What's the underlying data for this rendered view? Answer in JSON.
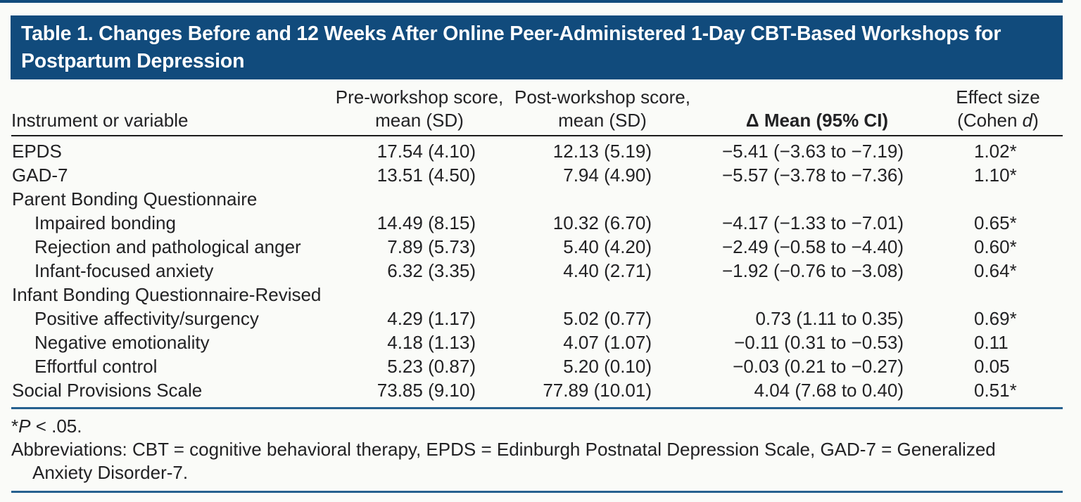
{
  "page": {
    "background": "#fafbf8",
    "accent_blue": "#114b7c",
    "rule_blue": "#26618f",
    "header_rule": "#1c1c1c"
  },
  "title": "Table 1. Changes Before and 12 Weeks After Online Peer-Administered 1-Day CBT-Based Workshops for Postpartum Depression",
  "table": {
    "headers": {
      "col1": "Instrument or variable",
      "col2": "Pre-workshop score, mean (SD)",
      "col3": "Post-workshop score, mean (SD)",
      "col4": "Δ Mean (95% CI)",
      "col5_line1": "Effect size",
      "col5_pre": "(Cohen ",
      "col5_italic": "d",
      "col5_post": ")"
    },
    "rows": [
      {
        "label": "EPDS",
        "indent": false,
        "pre": "17.54 (4.10)",
        "post": "12.13 (5.19)",
        "delta": "−5.41 (−3.63 to −7.19)",
        "effect": "1.02",
        "star": "*"
      },
      {
        "label": "GAD-7",
        "indent": false,
        "pre": "13.51 (4.50)",
        "post": "7.94 (4.90)",
        "delta": "−5.57 (−3.78 to −7.36)",
        "effect": "1.10",
        "star": "*"
      },
      {
        "label": "Parent Bonding Questionnaire",
        "indent": false,
        "pre": "",
        "post": "",
        "delta": "",
        "effect": "",
        "star": ""
      },
      {
        "label": "Impaired bonding",
        "indent": true,
        "pre": "14.49 (8.15)",
        "post": "10.32 (6.70)",
        "delta": "−4.17 (−1.33 to −7.01)",
        "effect": "0.65",
        "star": "*"
      },
      {
        "label": "Rejection and pathological anger",
        "indent": true,
        "pre": "7.89 (5.73)",
        "post": "5.40 (4.20)",
        "delta": "−2.49 (−0.58 to −4.40)",
        "effect": "0.60",
        "star": "*"
      },
      {
        "label": "Infant-focused anxiety",
        "indent": true,
        "pre": "6.32 (3.35)",
        "post": "4.40 (2.71)",
        "delta": "−1.92 (−0.76 to −3.08)",
        "effect": "0.64",
        "star": "*"
      },
      {
        "label": "Infant Bonding Questionnaire-Revised",
        "indent": false,
        "pre": "",
        "post": "",
        "delta": "",
        "effect": "",
        "star": ""
      },
      {
        "label": "Positive affectivity/surgency",
        "indent": true,
        "pre": "4.29 (1.17)",
        "post": "5.02 (0.77)",
        "delta": "0.73 (1.11 to 0.35)",
        "effect": "0.69",
        "star": "*"
      },
      {
        "label": "Negative emotionality",
        "indent": true,
        "pre": "4.18 (1.13)",
        "post": "4.07 (1.07)",
        "delta": "−0.11 (0.31 to −0.53)",
        "effect": "0.11",
        "star": ""
      },
      {
        "label": "Effortful control",
        "indent": true,
        "pre": "5.23 (0.87)",
        "post": "5.20 (0.10)",
        "delta": "−0.03 (0.21 to −0.27)",
        "effect": "0.05",
        "star": ""
      },
      {
        "label": "Social Provisions Scale",
        "indent": false,
        "pre": "73.85 (9.10)",
        "post": "77.89 (10.01)",
        "delta": "4.04 (7.68 to 0.40)",
        "effect": "0.51",
        "star": "*"
      }
    ]
  },
  "footnotes": {
    "sig_star": "*",
    "sig_p": "P",
    "sig_rest": " < .05.",
    "abbreviations": "Abbreviations: CBT = cognitive behavioral therapy, EPDS = Edinburgh Postnatal Depression Scale, GAD-7 = Generalized Anxiety Disorder-7."
  }
}
